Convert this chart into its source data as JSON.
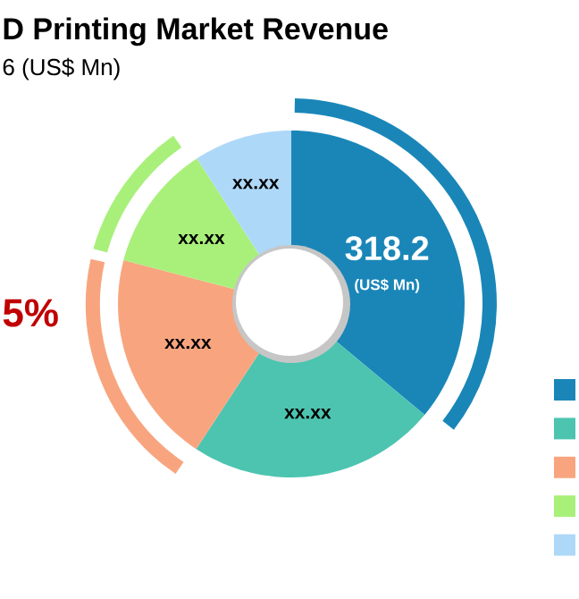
{
  "chart_data": {
    "type": "donut",
    "title": "D Printing Market Revenue",
    "subtitle": "6 (US$ Mn)",
    "categories": [
      null,
      null,
      null,
      null,
      null
    ],
    "values": [
      318.2,
      205,
      175,
      104,
      81
    ],
    "colors": [
      "#1a86b8",
      "#4cc4b0",
      "#f8a57f",
      "#a8f07a",
      "#aed8f8"
    ],
    "value_labels": [
      "318.2",
      "xx.xx",
      "xx.xx",
      "xx.xx",
      "xx.xx"
    ],
    "annotations": [
      "(US$ Mn)",
      "5%"
    ]
  }
}
